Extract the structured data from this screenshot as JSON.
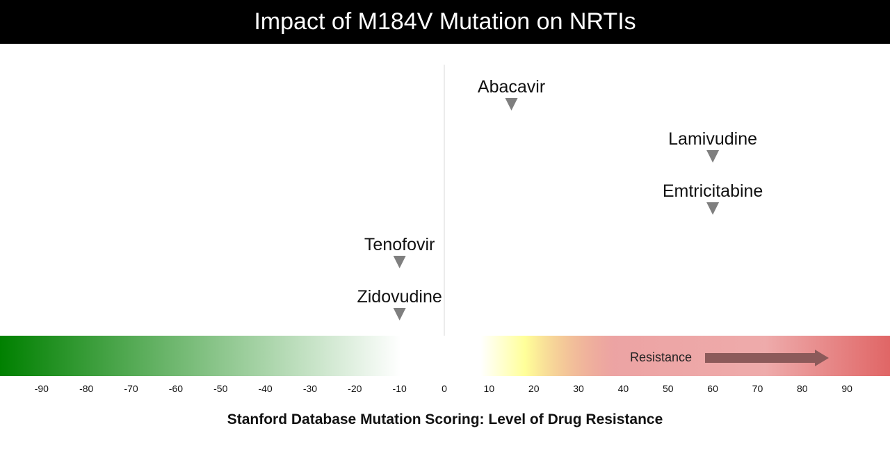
{
  "chart_data": {
    "type": "scatter",
    "title": "Impact of M184V Mutation on NRTIs",
    "xlabel": "Stanford Database Mutation Scoring: Level of Drug Resistance",
    "ylabel": "",
    "xlim": [
      -100,
      100
    ],
    "x_ticks": [
      -90,
      -80,
      -70,
      -60,
      -50,
      -40,
      -30,
      -20,
      -10,
      0,
      10,
      20,
      30,
      40,
      50,
      60,
      70,
      80,
      90
    ],
    "points": [
      {
        "name": "Abacavir",
        "x": 15
      },
      {
        "name": "Lamivudine",
        "x": 60
      },
      {
        "name": "Emtricitabine",
        "x": 60
      },
      {
        "name": "Tenofovir",
        "x": -10
      },
      {
        "name": "Zidovudine",
        "x": -10
      }
    ],
    "scale_annotation": "Resistance",
    "colors": {
      "title_bg": "#000000",
      "marker": "#7f7f7f",
      "susceptible": "#008000",
      "neutral": "#ffffff",
      "low": "#ffff99",
      "high": "#e06666",
      "arrow": "#8c5a5a"
    }
  }
}
